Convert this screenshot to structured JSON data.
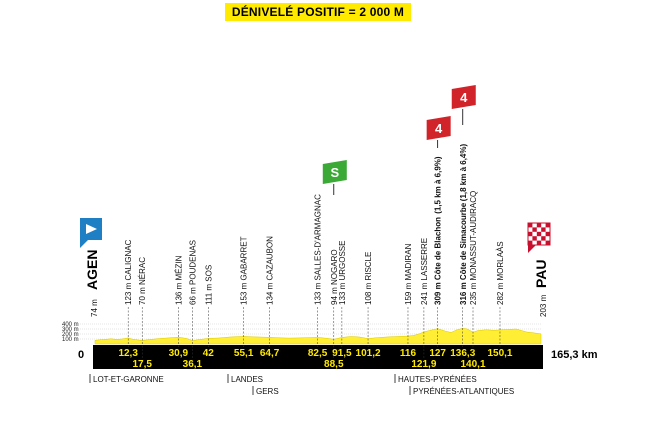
{
  "header": {
    "title": "DÉNIVELÉ POSITIF = 2 000 M"
  },
  "chart_data": {
    "type": "area",
    "total_distance_label": "165,3 km",
    "zero_label": "0",
    "y_ticks": [
      "400 m",
      "300 m",
      "200 m",
      "100 m"
    ],
    "x_range": [
      0,
      165.3
    ],
    "y_range": [
      0,
      400
    ],
    "start": {
      "name": "AGEN",
      "altitude": "74 m"
    },
    "finish": {
      "name": "PAU",
      "altitude": "203 m"
    },
    "profile": {
      "x": [
        0,
        3,
        6,
        8,
        10,
        12.3,
        14,
        17.5,
        20,
        24,
        28,
        30.9,
        34,
        36.1,
        38,
        42,
        46,
        50,
        55.1,
        58,
        62,
        64.7,
        68,
        72,
        76,
        80,
        82.5,
        86,
        88.5,
        91.5,
        95,
        98,
        101.2,
        104,
        108,
        112,
        116,
        118,
        120,
        121.9,
        124,
        127,
        130,
        132,
        134,
        136.3,
        138,
        140.1,
        142,
        145,
        148,
        150.1,
        153,
        156,
        160,
        163,
        165.3
      ],
      "altitude": [
        74,
        90,
        105,
        92,
        100,
        123,
        95,
        70,
        88,
        110,
        125,
        136,
        110,
        66,
        85,
        111,
        120,
        140,
        153,
        145,
        138,
        134,
        125,
        118,
        122,
        128,
        133,
        115,
        94,
        133,
        150,
        140,
        108,
        125,
        140,
        150,
        159,
        170,
        200,
        241,
        270,
        309,
        255,
        230,
        280,
        316,
        300,
        235,
        270,
        285,
        275,
        282,
        290,
        300,
        240,
        220,
        203
      ]
    },
    "waypoints": [
      {
        "km": 12.3,
        "km_label": "12,3",
        "label": "123 m CALIGNAC",
        "row": "top"
      },
      {
        "km": 17.5,
        "km_label": "17,5",
        "label": "70 m NÉRAC",
        "row": "bottom"
      },
      {
        "km": 30.9,
        "km_label": "30,9",
        "label": "136 m MÉZIN",
        "row": "top"
      },
      {
        "km": 36.1,
        "km_label": "36,1",
        "label": "66 m POUDENAS",
        "row": "bottom"
      },
      {
        "km": 42,
        "km_label": "42",
        "label": "111 m SOS",
        "row": "top"
      },
      {
        "km": 55.1,
        "km_label": "55,1",
        "label": "153 m GABARRET",
        "row": "top"
      },
      {
        "km": 64.7,
        "km_label": "64,7",
        "label": "134 m CAZAUBON",
        "row": "top"
      },
      {
        "km": 82.5,
        "km_label": "82,5",
        "label": "133 m SALLES-D'ARMAGNAC",
        "row": "top"
      },
      {
        "km": 88.5,
        "km_label": "88,5",
        "label": "94 m NOGARO",
        "row": "bottom"
      },
      {
        "km": 91.5,
        "km_label": "91,5",
        "label": "133 m URGOSSE",
        "row": "top"
      },
      {
        "km": 101.2,
        "km_label": "101,2",
        "label": "108 m RISCLE",
        "row": "top"
      },
      {
        "km": 116,
        "km_label": "116",
        "label": "159 m MADIRAN",
        "row": "top"
      },
      {
        "km": 121.9,
        "km_label": "121,9",
        "label": "241 m LASSERRE",
        "row": "bottom"
      },
      {
        "km": 127,
        "km_label": "127",
        "label": "309 m Côte de Blachon",
        "extra": "(1,5 km à 6,9%)",
        "row": "top"
      },
      {
        "km": 136.3,
        "km_label": "136,3",
        "label": "316 m Côte de Simacourbe",
        "extra": "(1,8 km à 6,4%)",
        "row": "top"
      },
      {
        "km": 140.1,
        "km_label": "140,1",
        "label": "235 m MONASSUT-AUDIRACQ",
        "row": "bottom"
      },
      {
        "km": 150.1,
        "km_label": "150,1",
        "label": "282 m MORLAÀS",
        "row": "top"
      }
    ],
    "markers": [
      {
        "type": "start",
        "icon": "start-flag-icon",
        "color": "#1f7fc4"
      },
      {
        "type": "sprint",
        "label": "S",
        "km": 88.5,
        "color": "#3aa935"
      },
      {
        "type": "climb",
        "label": "4",
        "km": 127,
        "color": "#d0232a"
      },
      {
        "type": "climb",
        "label": "4",
        "km": 136.3,
        "color": "#d0232a"
      },
      {
        "type": "finish",
        "icon": "finish-flag-icon",
        "color": "#c8102e"
      }
    ],
    "regions": [
      {
        "name": "LOT-ET-GARONNE",
        "row": 1
      },
      {
        "name": "LANDES",
        "row": 1
      },
      {
        "name": "GERS",
        "row": 2
      },
      {
        "name": "HAUTES-PYRÉNÉES",
        "row": 1
      },
      {
        "name": "PYRÉNÉES-ATLANTIQUES",
        "row": 2
      }
    ],
    "colors": {
      "profile_fill": "#ffee33",
      "base_band": "#000000",
      "km_text": "#ffea00"
    }
  }
}
